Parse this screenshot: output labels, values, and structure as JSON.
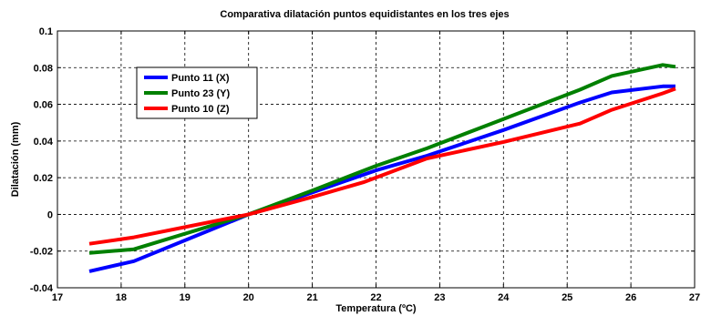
{
  "chart_data": {
    "type": "line",
    "title": "Comparativa dilatación puntos equidistantes en los tres ejes",
    "xlabel": "Temperatura (ºC)",
    "ylabel": "Dilatación (mm)",
    "xlim": [
      17,
      27
    ],
    "ylim": [
      -0.04,
      0.1
    ],
    "xticks": [
      "17",
      "18",
      "19",
      "20",
      "21",
      "22",
      "23",
      "24",
      "25",
      "26",
      "27"
    ],
    "yticks": [
      "-0.04",
      "-0.02",
      "0",
      "0.02",
      "0.04",
      "0.06",
      "0.08",
      "0.1"
    ],
    "grid": true,
    "legend_position": "top-left",
    "series": [
      {
        "name": "Punto 11 (X)",
        "color": "#0000ff",
        "x": [
          17.5,
          18.2,
          20.0,
          21.0,
          22.0,
          22.8,
          24.0,
          25.2,
          25.7,
          26.5,
          26.7
        ],
        "y": [
          -0.031,
          -0.0255,
          0.0,
          0.012,
          0.024,
          0.032,
          0.046,
          0.061,
          0.0665,
          0.0698,
          0.0698
        ]
      },
      {
        "name": "Punto 23 (Y)",
        "color": "#008000",
        "x": [
          17.5,
          18.2,
          20.0,
          21.0,
          22.0,
          22.8,
          24.0,
          25.2,
          25.7,
          26.5,
          26.7
        ],
        "y": [
          -0.021,
          -0.019,
          0.0,
          0.013,
          0.0265,
          0.036,
          0.052,
          0.068,
          0.0755,
          0.0815,
          0.0805
        ]
      },
      {
        "name": "Punto 10 (Z)",
        "color": "#ff0000",
        "x": [
          17.5,
          18.2,
          20.0,
          21.0,
          21.8,
          22.8,
          24.0,
          25.2,
          25.7,
          26.5,
          26.7
        ],
        "y": [
          -0.016,
          -0.0125,
          0.0,
          0.0095,
          0.0175,
          0.0305,
          0.0395,
          0.0495,
          0.057,
          0.066,
          0.0685
        ]
      }
    ]
  }
}
